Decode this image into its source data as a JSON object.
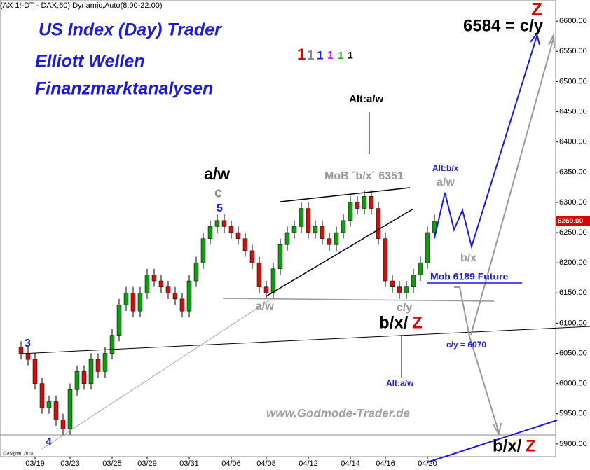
{
  "chart_data": {
    "type": "candlestick",
    "header": "(AX 1!-DT - DAX,60) Dynamic,Auto(8:00-22:00)",
    "copyright": "© eSignal, 2010",
    "xlim": [
      -3,
      76.3
    ],
    "ylim": [
      5879,
      6635
    ],
    "xticks": [
      {
        "value": 2,
        "label": "03/19"
      },
      {
        "value": 7,
        "label": "03/23"
      },
      {
        "value": 13,
        "label": "03/25"
      },
      {
        "value": 18,
        "label": "03/29"
      },
      {
        "value": 24,
        "label": "03/31"
      },
      {
        "value": 30,
        "label": "04/06"
      },
      {
        "value": 35,
        "label": "04/08"
      },
      {
        "value": 41,
        "label": "04/12"
      },
      {
        "value": 47,
        "label": "04/14"
      },
      {
        "value": 52,
        "label": "04/16"
      },
      {
        "value": 58,
        "label": "04/20"
      }
    ],
    "yticks": [
      {
        "value": 5900,
        "label": "5900.00"
      },
      {
        "value": 5950,
        "label": "5950.00"
      },
      {
        "value": 6000,
        "label": "6000.00"
      },
      {
        "value": 6050,
        "label": "6050.00"
      },
      {
        "value": 6100,
        "label": "6100.00"
      },
      {
        "value": 6150,
        "label": "6150.00"
      },
      {
        "value": 6200,
        "label": "6200.00"
      },
      {
        "value": 6250,
        "label": "6250.00"
      },
      {
        "value": 6300,
        "label": "6300.00"
      },
      {
        "value": 6350,
        "label": "6350.00"
      },
      {
        "value": 6400,
        "label": "6400.00"
      },
      {
        "value": 6450,
        "label": "6450.00"
      },
      {
        "value": 6500,
        "label": "6500.00"
      },
      {
        "value": 6550,
        "label": "6550.00"
      },
      {
        "value": 6600,
        "label": "6600.00"
      }
    ],
    "last_price": {
      "value": 6269,
      "label": "6269.00",
      "color": "#e00000"
    },
    "up_color": "#119911",
    "down_color": "#cc1111",
    "open": [
      6060,
      6050,
      6040,
      6000,
      5960,
      5970,
      5940,
      5925,
      5990,
      6020,
      6000,
      6040,
      6020,
      6050,
      6080,
      6130,
      6150,
      6120,
      6150,
      6180,
      6170,
      6160,
      6150,
      6140,
      6120,
      6170,
      6200,
      6240,
      6260,
      6270,
      6260,
      6250,
      6240,
      6220,
      6200,
      6160,
      6150,
      6190,
      6230,
      6250,
      6260,
      6290,
      6250,
      6260,
      6240,
      6230,
      6250,
      6270,
      6300,
      6290,
      6310,
      6290,
      6240,
      6170,
      6160,
      6150,
      6160,
      6180,
      6200,
      6250
    ],
    "high": [
      6070,
      6060,
      6050,
      6010,
      5980,
      5980,
      5950,
      6000,
      6030,
      6030,
      6050,
      6050,
      6060,
      6090,
      6140,
      6160,
      6160,
      6160,
      6190,
      6190,
      6180,
      6170,
      6160,
      6150,
      6180,
      6210,
      6250,
      6270,
      6280,
      6280,
      6270,
      6260,
      6250,
      6230,
      6210,
      6170,
      6200,
      6240,
      6260,
      6270,
      6300,
      6300,
      6270,
      6270,
      6250,
      6260,
      6280,
      6310,
      6310,
      6320,
      6320,
      6300,
      6250,
      6180,
      6170,
      6170,
      6190,
      6210,
      6260,
      6280
    ],
    "low": [
      6040,
      6030,
      5990,
      5950,
      5950,
      5930,
      5915,
      5915,
      5980,
      5990,
      5990,
      6010,
      6010,
      6040,
      6070,
      6120,
      6110,
      6110,
      6140,
      6160,
      6150,
      6140,
      6130,
      6110,
      6110,
      6160,
      6190,
      6230,
      6250,
      6250,
      6240,
      6230,
      6210,
      6190,
      6150,
      6140,
      6140,
      6180,
      6220,
      6240,
      6250,
      6240,
      6240,
      6230,
      6220,
      6220,
      6240,
      6260,
      6280,
      6280,
      6280,
      6230,
      6160,
      6150,
      6140,
      6140,
      6150,
      6170,
      6190,
      6240
    ],
    "close": [
      6050,
      6040,
      6000,
      5960,
      5970,
      5940,
      5925,
      5990,
      6020,
      6000,
      6040,
      6020,
      6050,
      6080,
      6130,
      6150,
      6120,
      6150,
      6180,
      6170,
      6160,
      6150,
      6140,
      6120,
      6170,
      6200,
      6240,
      6260,
      6270,
      6260,
      6250,
      6240,
      6220,
      6200,
      6160,
      6150,
      6190,
      6230,
      6250,
      6260,
      6290,
      6250,
      6260,
      6240,
      6230,
      6250,
      6270,
      6300,
      6290,
      6310,
      6290,
      6240,
      6170,
      6160,
      6150,
      6160,
      6180,
      6200,
      6250,
      6269
    ],
    "annotations": [
      {
        "text": "US Index (Day) Trader",
        "color": "#1a1ae6"
      },
      {
        "text": "Elliott Wellen",
        "color": "#1a1ae6"
      },
      {
        "text": "Finanzmarktanalysen",
        "color": "#1a1ae6"
      },
      {
        "text": "1",
        "color": "#e00000"
      },
      {
        "text": "1",
        "color": "#888888"
      },
      {
        "text": "1",
        "color": "#1a1ae6"
      },
      {
        "text": "1",
        "color": "#e020e0"
      },
      {
        "text": "1",
        "color": "#11aa11"
      },
      {
        "text": "1",
        "color": "#000000"
      },
      {
        "text": "Alt:a/w",
        "color": "#000000"
      },
      {
        "text": "MoB ´b/x´ 6351",
        "color": "#999999"
      },
      {
        "text": "a/w",
        "color": "#000000"
      },
      {
        "text": "c",
        "color": "#888888"
      },
      {
        "text": "5",
        "color": "#1a1ae6"
      },
      {
        "text": "Alt:b/x",
        "color": "#1a1ae6"
      },
      {
        "text": "a/w",
        "color": "#999999"
      },
      {
        "text": "b/x",
        "color": "#999999"
      },
      {
        "text": "Mob  6189 Future",
        "color": "#1a1ae6"
      },
      {
        "text": "a/w",
        "color": "#999999"
      },
      {
        "text": "c/y",
        "color": "#999999"
      },
      {
        "text": "b/x/",
        "color": "#000000"
      },
      {
        "text": "Z",
        "color": "#e00000"
      },
      {
        "text": "c/y = 6070",
        "color": "#1a1ae6"
      },
      {
        "text": "Alt:a/w",
        "color": "#1a1ae6"
      },
      {
        "text": "3",
        "color": "#1a1ae6"
      },
      {
        "text": "4",
        "color": "#1a1ae6"
      },
      {
        "text": "www.Godmode-Trader.de",
        "color": "#a0a0a0"
      },
      {
        "text": "b/x/",
        "color": "#000000"
      },
      {
        "text": "Z",
        "color": "#e00000"
      },
      {
        "text": "6584 = c/y",
        "color": "#000000"
      },
      {
        "text": "Z",
        "color": "#e00000"
      }
    ]
  }
}
